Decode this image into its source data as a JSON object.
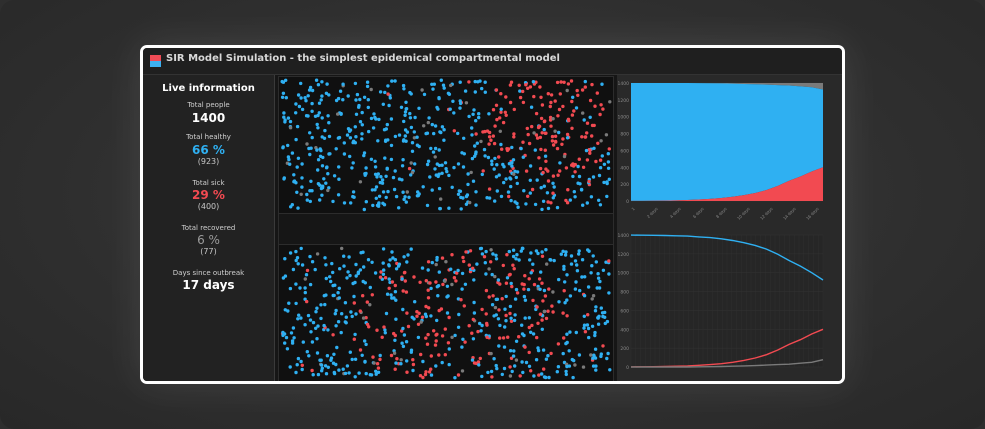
{
  "window": {
    "title": "SIR Model Simulation - the simplest epidemical compartmental model",
    "icon": "sir-app-icon"
  },
  "info": {
    "heading": "Live information",
    "total_people_label": "Total people",
    "total_people_value": "1400",
    "healthy_label": "Total healthy",
    "healthy_percent": "66 %",
    "healthy_count": "(923)",
    "sick_label": "Total sick",
    "sick_percent": "29 %",
    "sick_count": "(400)",
    "recovered_label": "Total recovered",
    "recovered_percent": "6 %",
    "recovered_count": "(77)",
    "days_label": "Days since outbreak",
    "days_value": "17 days"
  },
  "colors": {
    "healthy": "#2fb0f2",
    "sick": "#f24a51",
    "recovered": "#7a7a7a"
  },
  "chart_data": [
    {
      "type": "area",
      "x": [
        0,
        1,
        2,
        3,
        4,
        5,
        6,
        7,
        8,
        9,
        10,
        11,
        12,
        13,
        14,
        15,
        16,
        17
      ],
      "series": [
        {
          "values": [
            1,
            2,
            3,
            5,
            8,
            12,
            18,
            25,
            35,
            50,
            70,
            95,
            130,
            180,
            240,
            290,
            350,
            400
          ]
        },
        {
          "values": [
            1399,
            1398,
            1397,
            1395,
            1392,
            1388,
            1380,
            1372,
            1360,
            1342,
            1318,
            1290,
            1250,
            1195,
            1130,
            1070,
            1000,
            923
          ]
        },
        {
          "values": [
            0,
            0,
            0,
            0,
            0,
            0,
            2,
            3,
            5,
            8,
            12,
            15,
            20,
            25,
            30,
            40,
            50,
            77
          ]
        }
      ],
      "yticks": [
        "0",
        "200",
        "400",
        "600",
        "800",
        "1000",
        "1200",
        "1400"
      ],
      "xticks": [
        "1",
        "2 days",
        "4 days",
        "6 days",
        "8 days",
        "10 days",
        "12 days",
        "14 days",
        "16 days"
      ],
      "ylim": [
        0,
        1400
      ]
    },
    {
      "type": "line",
      "x": [
        0,
        1,
        2,
        3,
        4,
        5,
        6,
        7,
        8,
        9,
        10,
        11,
        12,
        13,
        14,
        15,
        16,
        17
      ],
      "series": [
        {
          "values": [
            1399,
            1398,
            1397,
            1395,
            1392,
            1388,
            1380,
            1372,
            1360,
            1342,
            1318,
            1290,
            1250,
            1195,
            1130,
            1070,
            1000,
            923
          ]
        },
        {
          "values": [
            1,
            2,
            3,
            5,
            8,
            12,
            18,
            25,
            35,
            50,
            70,
            95,
            130,
            180,
            240,
            290,
            350,
            400
          ]
        },
        {
          "values": [
            0,
            0,
            0,
            0,
            0,
            0,
            2,
            3,
            5,
            8,
            12,
            15,
            20,
            25,
            30,
            40,
            50,
            77
          ]
        }
      ],
      "yticks": [
        "0",
        "200",
        "400",
        "600",
        "800",
        "1000",
        "1200",
        "1400"
      ],
      "ylim": [
        0,
        1400
      ]
    }
  ]
}
